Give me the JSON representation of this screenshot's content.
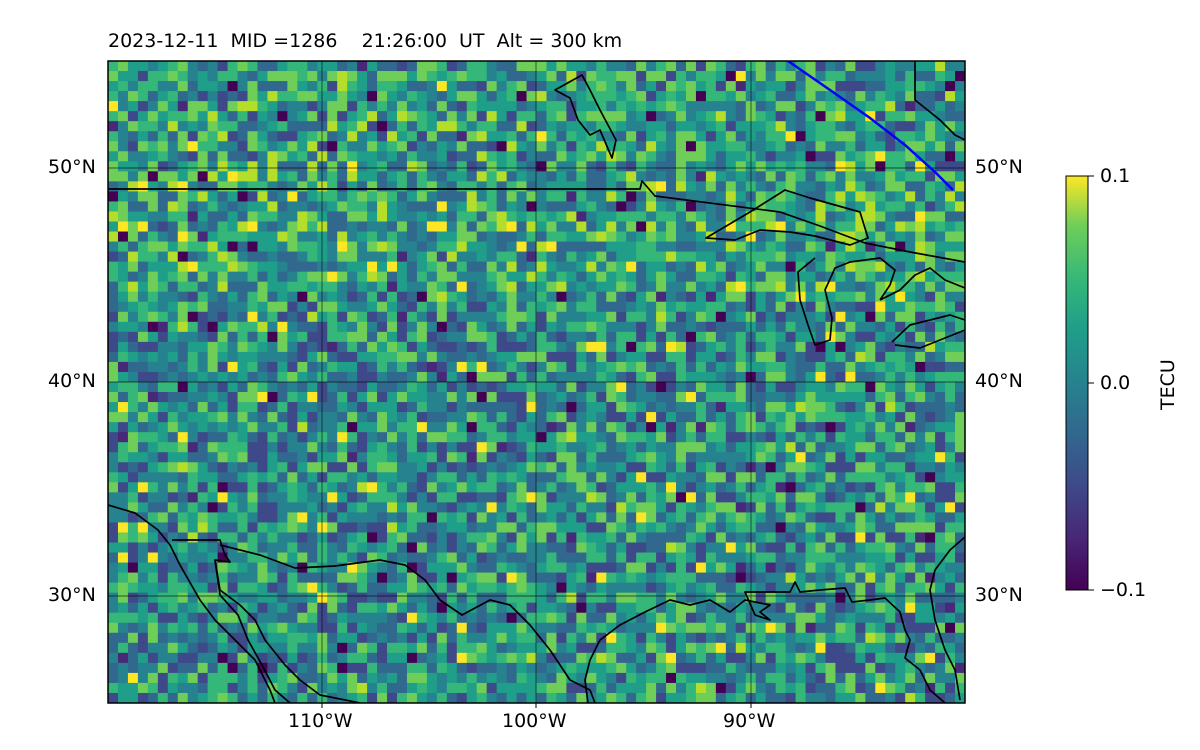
{
  "title": "2023-12-11  MID =1286    21:26:00  UT  Alt = 300 km",
  "chart_data": {
    "type": "heatmap",
    "title": "2023-12-11  MID =1286    21:26:00  UT  Alt = 300 km",
    "lon_range": [
      -120,
      -80
    ],
    "lat_range": [
      25,
      55
    ],
    "lat_ticks": [
      "50°N",
      "40°N",
      "30°N"
    ],
    "lon_ticks": [
      "110°W",
      "100°W",
      "90°W"
    ],
    "colorbar": {
      "label": "TECU",
      "min": -0.1,
      "max": 0.1,
      "ticks": [
        "0.1",
        "0.0",
        "−0.1"
      ],
      "colormap": "viridis"
    },
    "grid": true,
    "features": [
      "coastlines",
      "country borders",
      "terminator line (blue)"
    ]
  },
  "colors": {
    "terminator": "#0000ff",
    "coast": "#000000",
    "grid": "#000000"
  }
}
